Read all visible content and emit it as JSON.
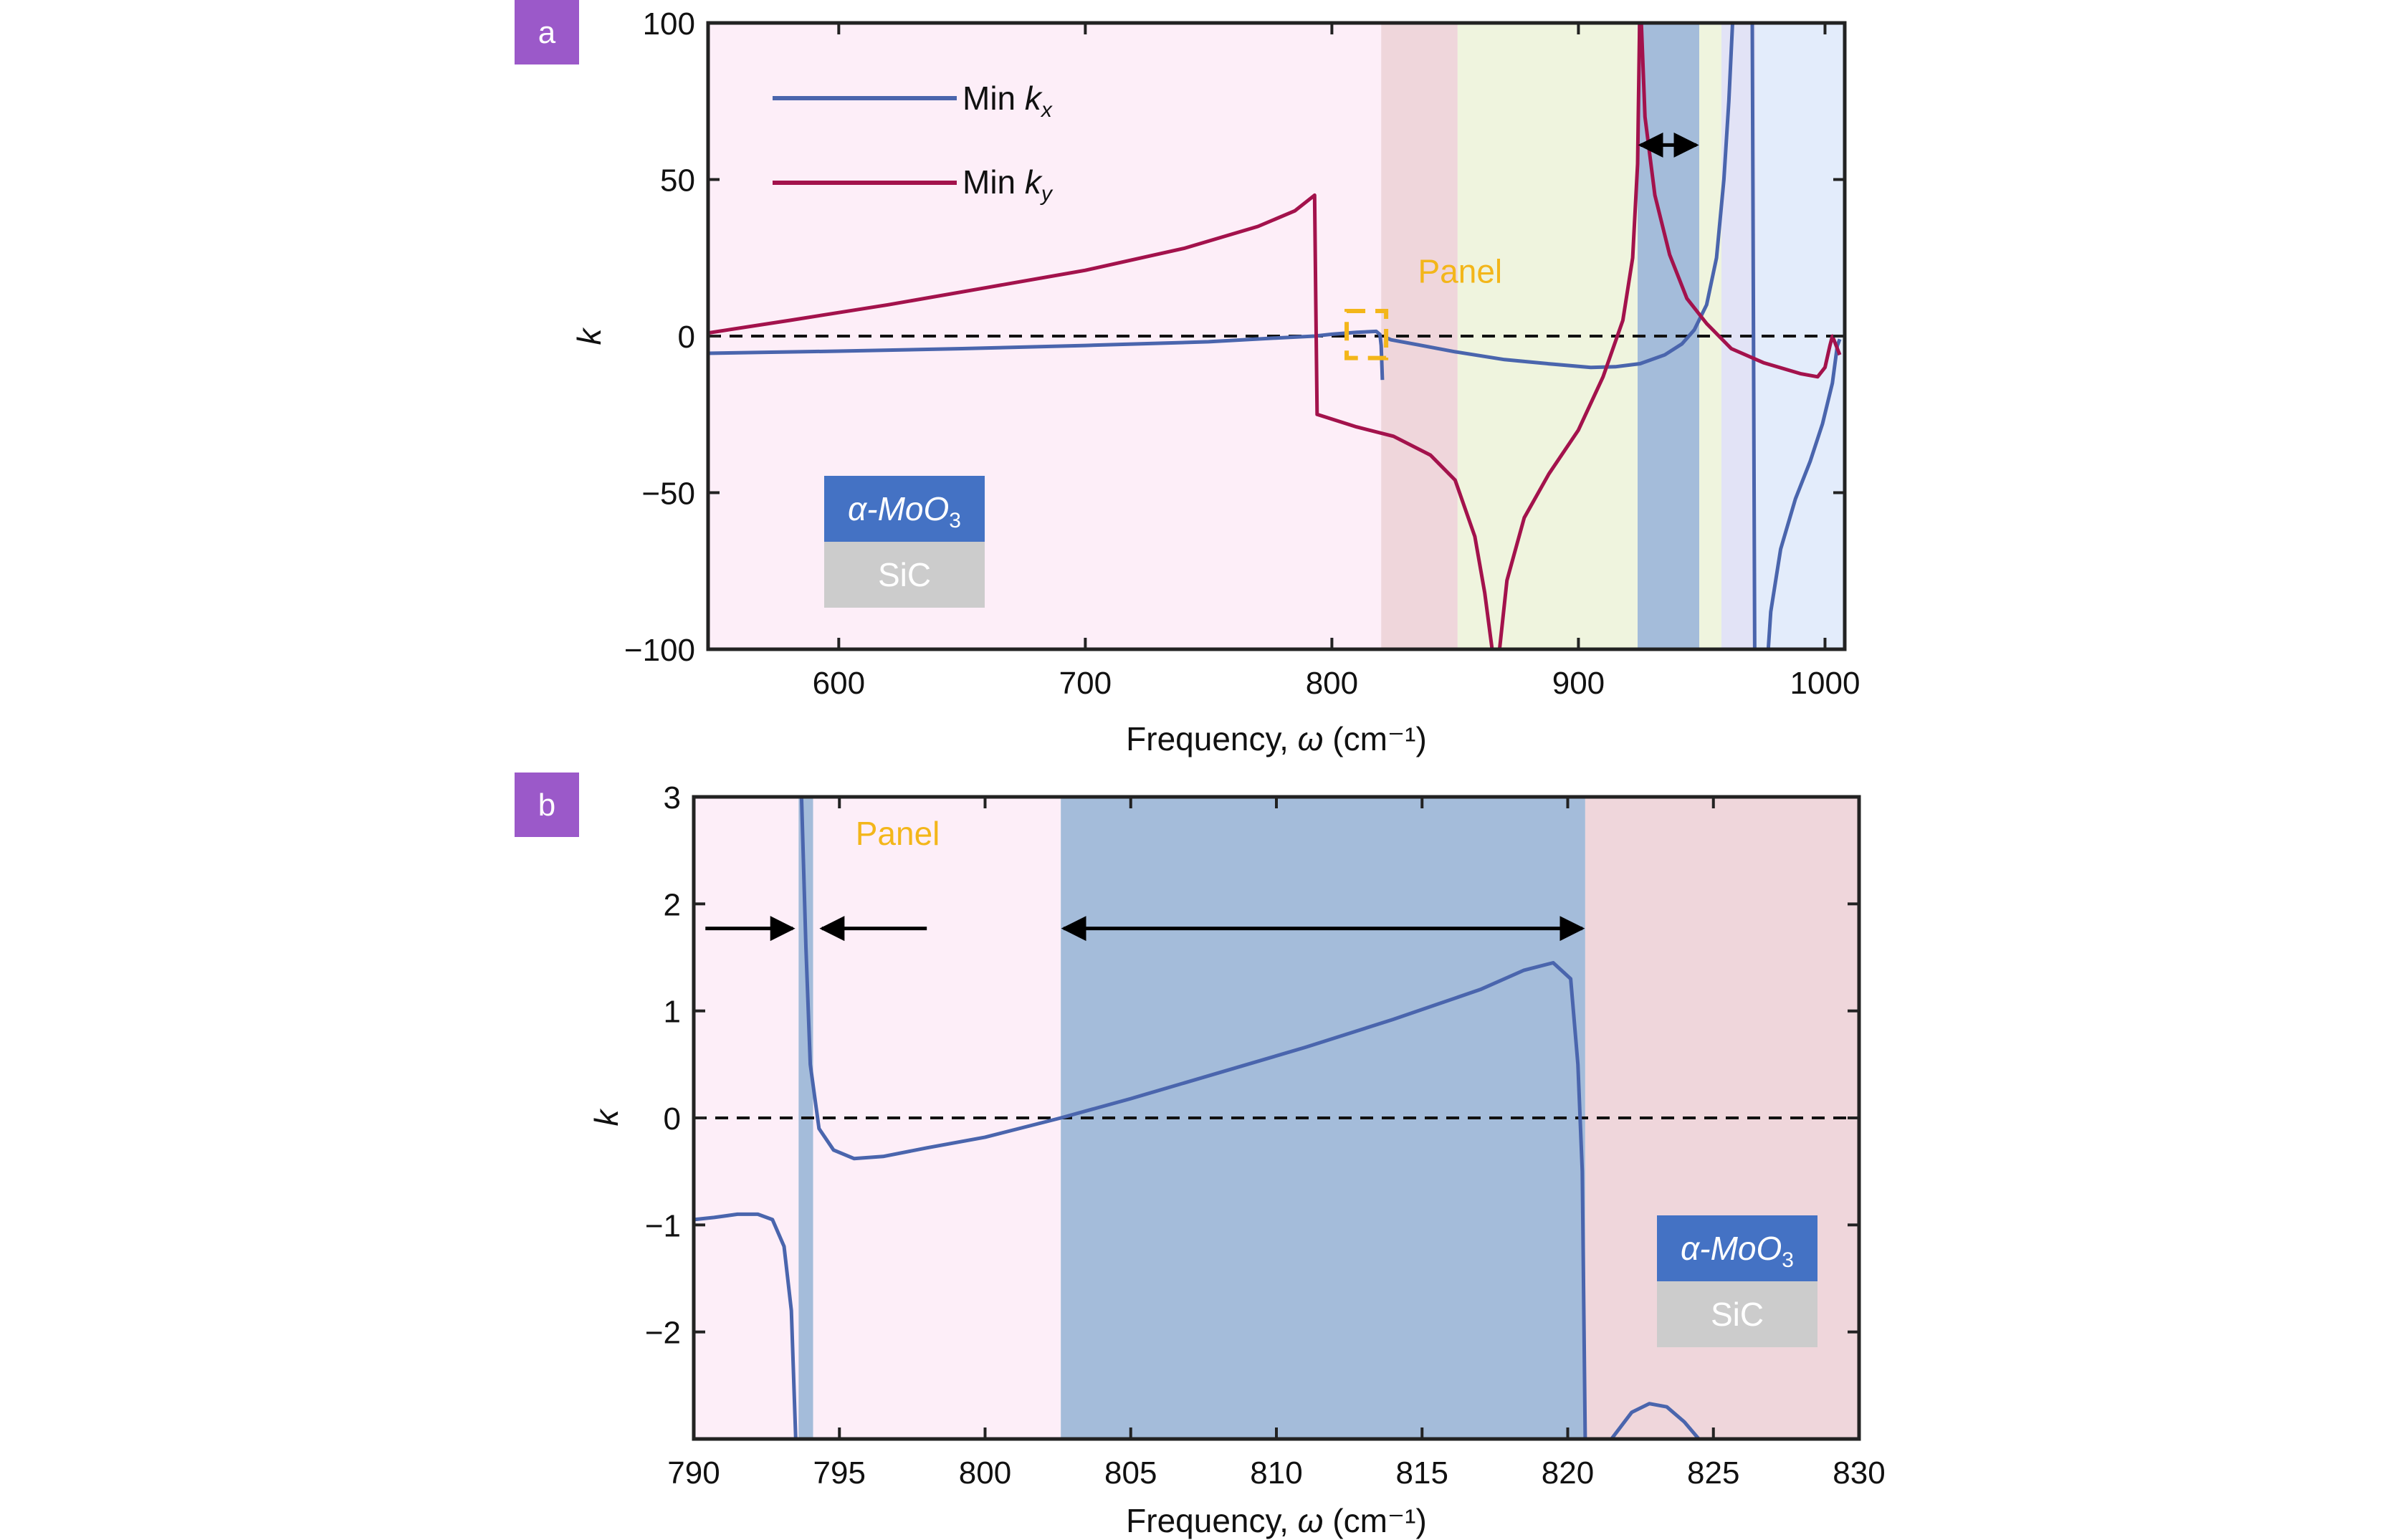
{
  "colors": {
    "kx": "#4a65ad",
    "ky": "#a3124c",
    "panel_label_bg": "#9b59c9",
    "annotation": "#f3b61a",
    "mat_top": "#4472c4",
    "mat_bottom": "#cccccc",
    "band_pink": "#fdeef8",
    "band_rose": "#efd6db",
    "band_green": "#eff4de",
    "band_blue": "#a4bcda",
    "band_lavender": "#e2e3f6",
    "band_lightblue": "#e3ecfb"
  },
  "chart_data": [
    {
      "type": "line",
      "panel_label": "a",
      "xlabel": "Frequency, ω (cm⁻¹)",
      "ylabel": "k",
      "xlim": [
        547,
        1008
      ],
      "ylim": [
        -100,
        100
      ],
      "x_ticks": [
        600,
        700,
        800,
        900,
        1000
      ],
      "y_ticks": [
        -100,
        -50,
        0,
        50,
        100
      ],
      "y_tick_labels": [
        "−100",
        "−50",
        "0",
        "50",
        "100"
      ],
      "zero_line": "dashed",
      "grid": false,
      "legend": {
        "placement": "top-left"
      },
      "bands": [
        {
          "x": [
            547,
            820
          ],
          "color": "band_pink"
        },
        {
          "x": [
            820,
            851
          ],
          "color": "band_rose"
        },
        {
          "x": [
            851,
            924
          ],
          "color": "band_green"
        },
        {
          "x": [
            924,
            949
          ],
          "color": "band_blue"
        },
        {
          "x": [
            949,
            958
          ],
          "color": "band_green"
        },
        {
          "x": [
            958,
            972
          ],
          "color": "band_lavender"
        },
        {
          "x": [
            972,
            1008
          ],
          "color": "band_lightblue"
        }
      ],
      "series": [
        {
          "name": "Min k_x",
          "legend_text": "Min ",
          "legend_var": "k",
          "legend_sub": "x",
          "color": "kx",
          "segments": [
            [
              [
                547,
                -5.5
              ],
              [
                600,
                -4.8
              ],
              [
                650,
                -4.0
              ],
              [
                700,
                -3.0
              ],
              [
                750,
                -1.8
              ],
              [
                780,
                -0.5
              ],
              [
                793,
                0
              ],
              [
                800,
                0.6
              ],
              [
                810,
                1.2
              ],
              [
                818,
                1.5
              ],
              [
                819.5,
                0.5
              ],
              [
                820,
                -3
              ],
              [
                820.5,
                -14
              ]
            ],
            [
              [
                822,
                -0.5
              ],
              [
                824,
                -1.2
              ],
              [
                835,
                -2.8
              ],
              [
                850,
                -5
              ],
              [
                870,
                -7.5
              ],
              [
                890,
                -9
              ],
              [
                905,
                -10
              ],
              [
                915,
                -9.8
              ],
              [
                925,
                -8.8
              ],
              [
                935,
                -6
              ],
              [
                942,
                -2.5
              ],
              [
                947,
                2
              ],
              [
                952,
                10
              ],
              [
                956,
                25
              ],
              [
                959,
                50
              ],
              [
                961,
                75
              ],
              [
                962.5,
                100
              ]
            ],
            [
              [
                969,
                100
              ],
              [
                970.5,
                100
              ],
              [
                971,
                0
              ],
              [
                971.5,
                -100
              ]
            ],
            [
              [
                977,
                -100
              ],
              [
                978,
                -88
              ],
              [
                982,
                -68
              ],
              [
                988,
                -52
              ],
              [
                994,
                -40
              ],
              [
                999,
                -28
              ],
              [
                1003,
                -15
              ],
              [
                1005,
                -3
              ],
              [
                1006,
                -1
              ]
            ]
          ]
        },
        {
          "name": "Min k_y",
          "legend_text": "Min ",
          "legend_var": "k",
          "legend_sub": "y",
          "color": "ky",
          "segments": [
            [
              [
                547,
                1
              ],
              [
                580,
                5
              ],
              [
                620,
                10
              ],
              [
                660,
                15.5
              ],
              [
                700,
                21
              ],
              [
                740,
                28
              ],
              [
                770,
                35
              ],
              [
                785,
                40
              ],
              [
                793,
                45
              ],
              [
                793.5,
                10
              ],
              [
                794,
                -25
              ],
              [
                810,
                -29
              ],
              [
                825,
                -32
              ],
              [
                840,
                -38
              ],
              [
                850,
                -46
              ],
              [
                858,
                -64
              ],
              [
                862,
                -82
              ],
              [
                865,
                -100
              ]
            ],
            [
              [
                868,
                -100
              ],
              [
                871,
                -78
              ],
              [
                878,
                -58
              ],
              [
                888,
                -44
              ],
              [
                900,
                -30
              ],
              [
                910,
                -13
              ],
              [
                918,
                5
              ],
              [
                922,
                25
              ],
              [
                924,
                55
              ],
              [
                924.8,
                100
              ]
            ],
            [
              [
                925.5,
                100
              ],
              [
                927,
                70
              ],
              [
                931,
                45
              ],
              [
                937,
                26
              ],
              [
                944,
                12
              ],
              [
                952,
                4
              ],
              [
                962,
                -4
              ],
              [
                975,
                -8.5
              ],
              [
                990,
                -12
              ],
              [
                997,
                -13
              ],
              [
                1000,
                -10
              ],
              [
                1002,
                -3
              ],
              [
                1003,
                0
              ],
              [
                1005,
                -4
              ],
              [
                1006,
                -6
              ]
            ]
          ]
        }
      ],
      "annotations": {
        "panel_text": "Panel",
        "panel_text_at": [
          852,
          17
        ],
        "dashed_box": {
          "x": [
            806,
            822
          ],
          "y": [
            -7,
            8
          ]
        },
        "arrow": {
          "x": [
            924,
            949
          ],
          "y": 61
        }
      },
      "material_labels": {
        "top": "α-MoO",
        "top_sub": "3",
        "bottom": "SiC"
      }
    },
    {
      "type": "line",
      "panel_label": "b",
      "xlabel": "Frequency, ω (cm⁻¹)",
      "ylabel": "k",
      "xlim": [
        790,
        830
      ],
      "ylim": [
        -3,
        3
      ],
      "x_ticks": [
        790,
        795,
        800,
        805,
        810,
        815,
        820,
        825,
        830
      ],
      "y_ticks": [
        -2,
        -1,
        0,
        1,
        2,
        3
      ],
      "y_tick_labels": [
        "−2",
        "−1",
        "0",
        "1",
        "2",
        "3"
      ],
      "zero_line": "dashed",
      "grid": false,
      "bands": [
        {
          "x": [
            790,
            793.6
          ],
          "color": "band_pink"
        },
        {
          "x": [
            793.6,
            794.1
          ],
          "color": "band_blue"
        },
        {
          "x": [
            794.1,
            802.6
          ],
          "color": "band_pink"
        },
        {
          "x": [
            802.6,
            820.6
          ],
          "color": "band_blue"
        },
        {
          "x": [
            820.6,
            830
          ],
          "color": "band_rose"
        }
      ],
      "series": [
        {
          "name": "Min k_x",
          "color": "kx",
          "segments": [
            [
              [
                790,
                -0.95
              ],
              [
                790.7,
                -0.93
              ],
              [
                791.5,
                -0.9
              ],
              [
                792.2,
                -0.9
              ],
              [
                792.7,
                -0.95
              ],
              [
                793.1,
                -1.2
              ],
              [
                793.35,
                -1.8
              ],
              [
                793.5,
                -3
              ]
            ],
            [
              [
                793.7,
                3
              ],
              [
                793.85,
                1.6
              ],
              [
                794,
                0.5
              ],
              [
                794.3,
                -0.1
              ],
              [
                794.8,
                -0.3
              ],
              [
                795.5,
                -0.38
              ],
              [
                796.5,
                -0.36
              ],
              [
                798,
                -0.28
              ],
              [
                800,
                -0.18
              ],
              [
                802.6,
                0
              ],
              [
                805,
                0.18
              ],
              [
                808,
                0.42
              ],
              [
                811,
                0.66
              ],
              [
                814,
                0.92
              ],
              [
                817,
                1.2
              ],
              [
                818.5,
                1.38
              ],
              [
                819.5,
                1.45
              ],
              [
                820.1,
                1.3
              ],
              [
                820.35,
                0.5
              ],
              [
                820.5,
                -0.5
              ],
              [
                820.6,
                -3
              ]
            ],
            [
              [
                821.5,
                -3
              ],
              [
                822.2,
                -2.75
              ],
              [
                822.8,
                -2.67
              ],
              [
                823.4,
                -2.7
              ],
              [
                824,
                -2.84
              ],
              [
                824.5,
                -3
              ]
            ]
          ]
        }
      ],
      "annotations": {
        "panel_text": "Panel",
        "panel_text_at": [
          797,
          2.55
        ],
        "arrows_in": {
          "left_x": [
            790.4,
            793.4
          ],
          "right_x": [
            798,
            794.4
          ],
          "y": 1.77
        },
        "arrow_double": {
          "x": [
            802.6,
            820.6
          ],
          "y": 1.77
        }
      },
      "material_labels": {
        "top": "α-MoO",
        "top_sub": "3",
        "bottom": "SiC"
      }
    }
  ]
}
